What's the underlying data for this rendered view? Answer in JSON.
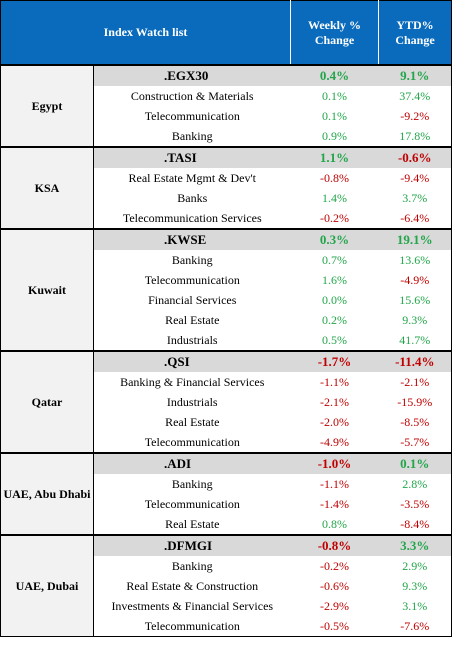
{
  "header": {
    "title": "Index Watch list",
    "weekly": "Weekly % Change",
    "ytd": "YTD% Change"
  },
  "groups": [
    {
      "country": "Egypt",
      "rows": [
        {
          "name": ".EGX30",
          "weekly": "0.4%",
          "ytd": "9.1%",
          "index": true
        },
        {
          "name": "Construction & Materials",
          "weekly": "0.1%",
          "ytd": "37.4%"
        },
        {
          "name": "Telecommunication",
          "weekly": "0.1%",
          "ytd": "-9.2%"
        },
        {
          "name": "Banking",
          "weekly": "0.9%",
          "ytd": "17.8%"
        }
      ]
    },
    {
      "country": "KSA",
      "rows": [
        {
          "name": ".TASI",
          "weekly": "1.1%",
          "ytd": "-0.6%",
          "index": true
        },
        {
          "name": "Real Estate Mgmt & Dev't",
          "weekly": "-0.8%",
          "ytd": "-9.4%"
        },
        {
          "name": "Banks",
          "weekly": "1.4%",
          "ytd": "3.7%"
        },
        {
          "name": "Telecommunication Services",
          "weekly": "-0.2%",
          "ytd": "-6.4%"
        }
      ]
    },
    {
      "country": "Kuwait",
      "rows": [
        {
          "name": ".KWSE",
          "weekly": "0.3%",
          "ytd": "19.1%",
          "index": true
        },
        {
          "name": "Banking",
          "weekly": "0.7%",
          "ytd": "13.6%"
        },
        {
          "name": "Telecommunication",
          "weekly": "1.6%",
          "ytd": "-4.9%"
        },
        {
          "name": "Financial Services",
          "weekly": "0.0%",
          "ytd": "15.6%"
        },
        {
          "name": "Real Estate",
          "weekly": "0.2%",
          "ytd": "9.3%"
        },
        {
          "name": "Industrials",
          "weekly": "0.5%",
          "ytd": "41.7%"
        }
      ]
    },
    {
      "country": "Qatar",
      "rows": [
        {
          "name": ".QSI",
          "weekly": "-1.7%",
          "ytd": "-11.4%",
          "index": true
        },
        {
          "name": "Banking & Financial Services",
          "weekly": "-1.1%",
          "ytd": "-2.1%"
        },
        {
          "name": "Industrials",
          "weekly": "-2.1%",
          "ytd": "-15.9%"
        },
        {
          "name": "Real Estate",
          "weekly": "-2.0%",
          "ytd": "-8.5%"
        },
        {
          "name": "Telecommunication",
          "weekly": "-4.9%",
          "ytd": "-5.7%"
        }
      ]
    },
    {
      "country": "UAE, Abu Dhabi",
      "rows": [
        {
          "name": ".ADI",
          "weekly": "-1.0%",
          "ytd": "0.1%",
          "index": true
        },
        {
          "name": "Banking",
          "weekly": "-1.1%",
          "ytd": "2.8%"
        },
        {
          "name": "Telecommunication",
          "weekly": "-1.4%",
          "ytd": "-3.5%"
        },
        {
          "name": "Real Estate",
          "weekly": "0.8%",
          "ytd": "-8.4%"
        }
      ]
    },
    {
      "country": "UAE, Dubai",
      "rows": [
        {
          "name": ".DFMGI",
          "weekly": "-0.8%",
          "ytd": "3.3%",
          "index": true
        },
        {
          "name": "Banking",
          "weekly": "-0.2%",
          "ytd": "2.9%"
        },
        {
          "name": "Real Estate & Construction",
          "weekly": "-0.6%",
          "ytd": "9.3%"
        },
        {
          "name": "Investments & Financial Services",
          "weekly": "-2.9%",
          "ytd": "3.1%"
        },
        {
          "name": "Telecommunication",
          "weekly": "-0.5%",
          "ytd": "-7.6%"
        }
      ]
    }
  ],
  "colors": {
    "header_bg": "#0a6bbd",
    "positive": "#22a64a",
    "negative": "#c00000",
    "index_row_bg": "#d9d9d9"
  }
}
